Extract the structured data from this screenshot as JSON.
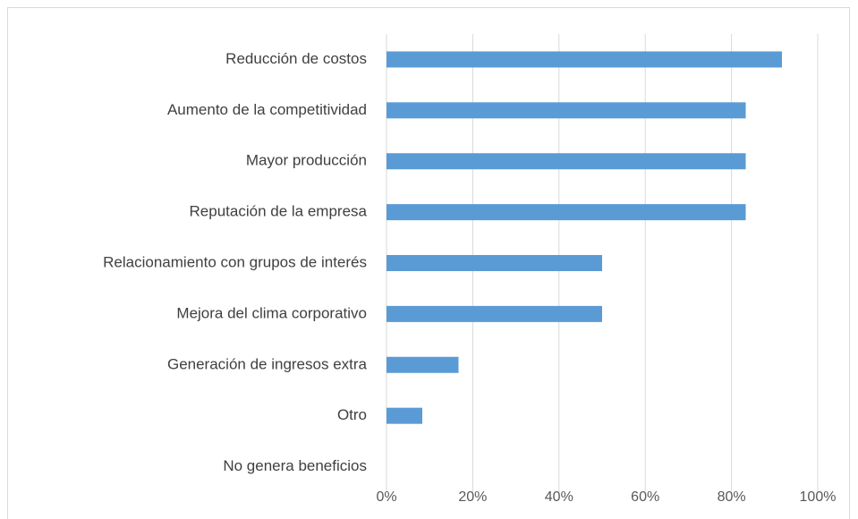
{
  "chart_data": {
    "type": "bar",
    "orientation": "horizontal",
    "categories": [
      "Reducción de costos",
      "Aumento de la competitividad",
      "Mayor producción",
      "Reputación de la empresa",
      "Relacionamiento con grupos de interés",
      "Mejora del clima corporativo",
      "Generación de ingresos extra",
      "Otro",
      "No genera beneficios"
    ],
    "values": [
      91.7,
      83.3,
      83.3,
      83.3,
      50,
      50,
      16.7,
      8.3,
      0
    ],
    "color": "#5b9bd5",
    "xlim": [
      0,
      100
    ],
    "xticks": [
      {
        "value": 0,
        "label": "0%"
      },
      {
        "value": 20,
        "label": "20%"
      },
      {
        "value": 40,
        "label": "40%"
      },
      {
        "value": 60,
        "label": "60%"
      },
      {
        "value": 80,
        "label": "80%"
      },
      {
        "value": 100,
        "label": "100%"
      }
    ],
    "grid": true
  }
}
